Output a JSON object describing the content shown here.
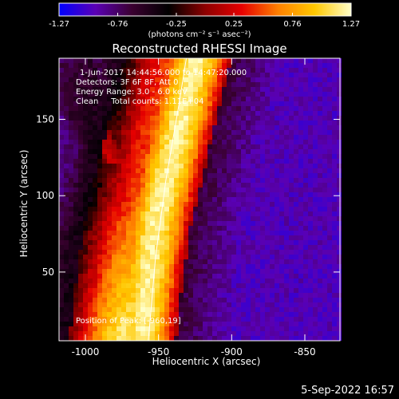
{
  "chart_data": {
    "type": "heatmap",
    "title": "Reconstructed RHESSI Image",
    "xlabel": "Heliocentric X (arcsec)",
    "ylabel": "Heliocentric Y (arcsec)",
    "xlim": [
      -1018,
      -826
    ],
    "ylim": [
      5,
      190
    ],
    "x_ticks": [
      -1000,
      -950,
      -900,
      -850
    ],
    "x_tick_labels": [
      "-1000",
      "-950",
      "-900",
      "-850"
    ],
    "y_ticks": [
      50,
      100,
      150
    ],
    "y_tick_labels": [
      "50",
      "100",
      "150"
    ],
    "colorbar": {
      "min": -1.27,
      "max": 1.27,
      "ticks": [
        -1.27,
        -0.76,
        -0.25,
        0.25,
        0.76,
        1.27
      ],
      "tick_labels": [
        "-1.27",
        "-0.76",
        "-0.25",
        "0.25",
        "0.76",
        "1.27"
      ],
      "units_label": "(photons cm⁻² s⁻¹ asec⁻²)",
      "colormap": [
        "#0000ff",
        "#5a00b4",
        "#3a0030",
        "#000000",
        "#8c0000",
        "#e60000",
        "#ff8000",
        "#ffc800",
        "#ffffc8"
      ]
    },
    "annotations": [
      "1-Jun-2017 14:44:56.000 to 14:47:20.000",
      "Detectors: 3F 6F 8F, Att 0",
      "Energy Range: 3.0 - 6.0 keV",
      "Clean     Total counts: 1.11E+04"
    ],
    "position_label": "Position of Peak: [-960,19]",
    "ridge": {
      "description_values": [
        [
          -962,
          5
        ],
        [
          -958,
          40
        ],
        [
          -952,
          80
        ],
        [
          -942,
          120
        ],
        [
          -932,
          160
        ],
        [
          -924,
          190
        ]
      ],
      "width_arcsec": 28,
      "secondary_ridge": [
        [
          -1010,
          190
        ],
        [
          -995,
          150
        ],
        [
          -980,
          120
        ]
      ]
    },
    "limb_line": [
      [
        -957,
        5
      ],
      [
        -952,
        60
      ],
      [
        -945,
        110
      ],
      [
        -936,
        160
      ],
      [
        -931,
        190
      ]
    ]
  },
  "footer_date": "5-Sep-2022 16:57"
}
